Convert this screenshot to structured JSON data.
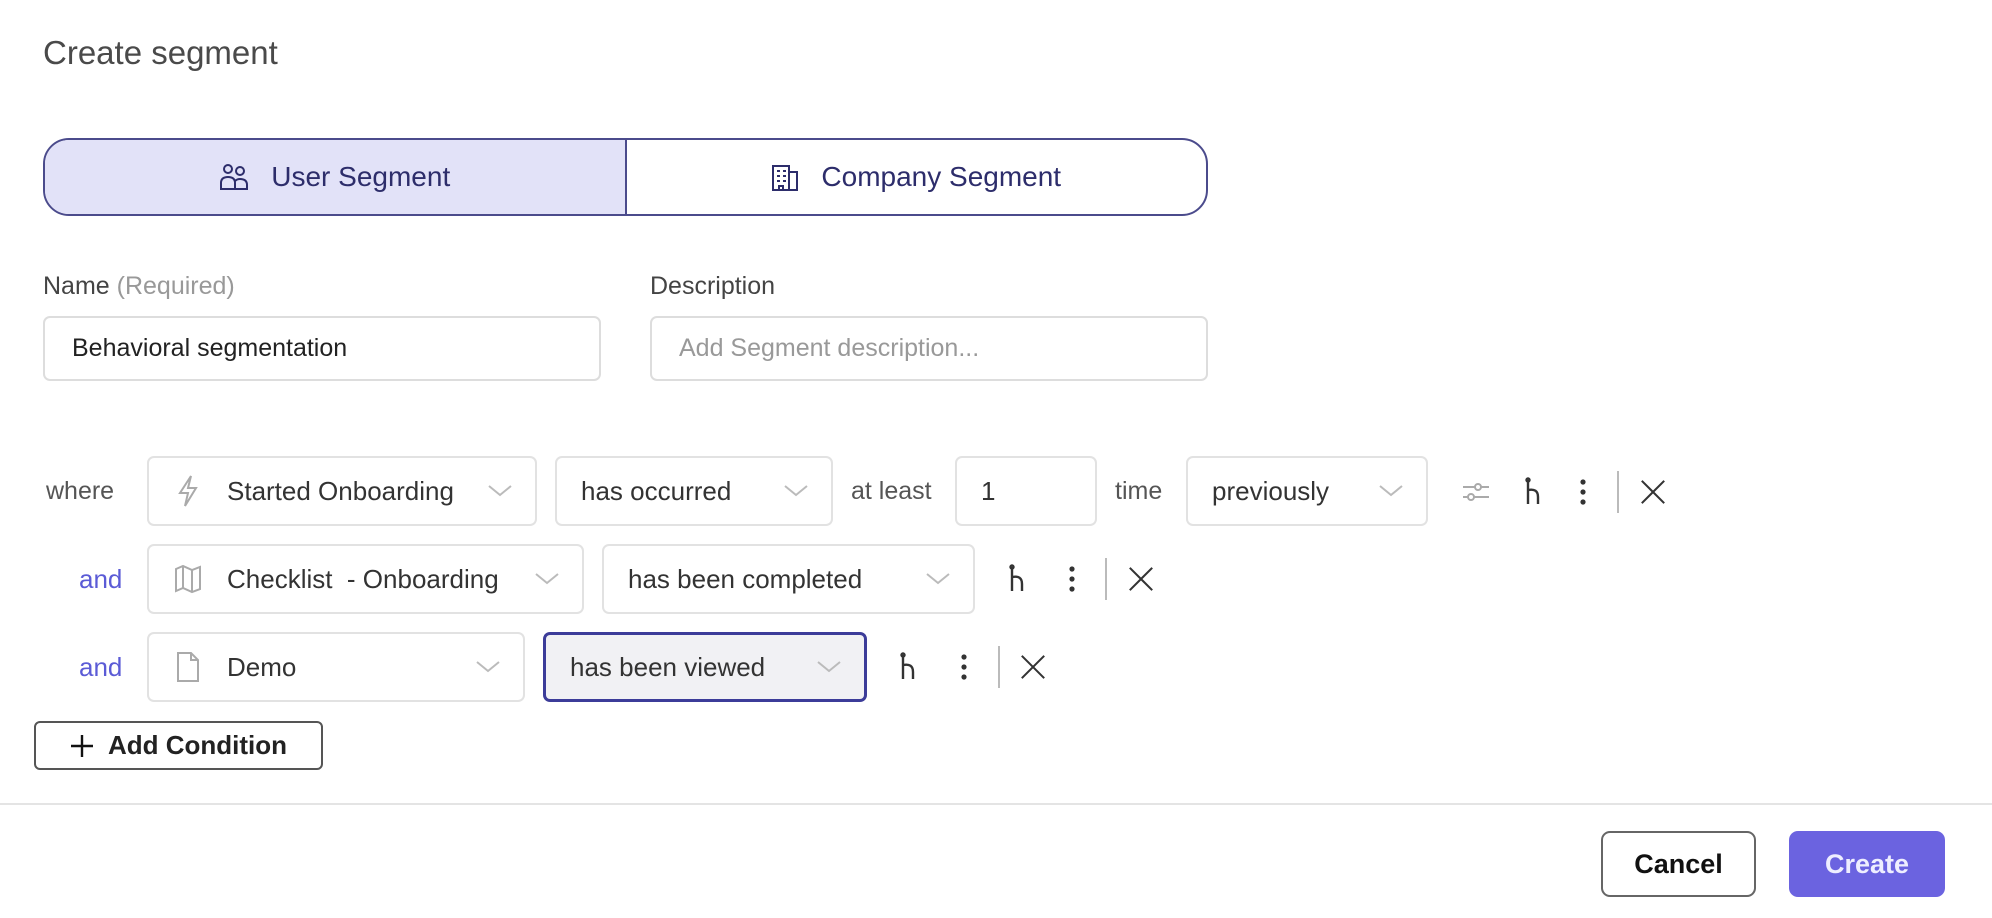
{
  "dialog": {
    "title": "Create segment"
  },
  "segment_type": {
    "user": "User Segment",
    "company": "Company Segment",
    "selected": "user"
  },
  "form": {
    "name_label": "Name",
    "name_required": "(Required)",
    "name_value": "Behavioral segmentation",
    "description_label": "Description",
    "description_placeholder": "Add Segment description..."
  },
  "conditions": [
    {
      "connector": "where",
      "icon": "lightning-icon",
      "subject": "Started Onboarding",
      "operator": "has occurred",
      "at_least_label": "at least",
      "count": "1",
      "time_label": "time",
      "timeframe": "previously"
    },
    {
      "connector": "and",
      "icon": "map-icon",
      "subject": "Checklist  - Onboarding",
      "operator": "has been completed"
    },
    {
      "connector": "and",
      "icon": "file-icon",
      "subject": "Demo",
      "operator": "has been viewed"
    }
  ],
  "add_condition_label": "Add Condition",
  "footer": {
    "cancel": "Cancel",
    "create": "Create"
  },
  "colors": {
    "accent": "#6b63e0",
    "toggle_border": "#4b4b8c",
    "toggle_active_bg": "#e2e2f8",
    "connector": "#5b5bd6"
  }
}
